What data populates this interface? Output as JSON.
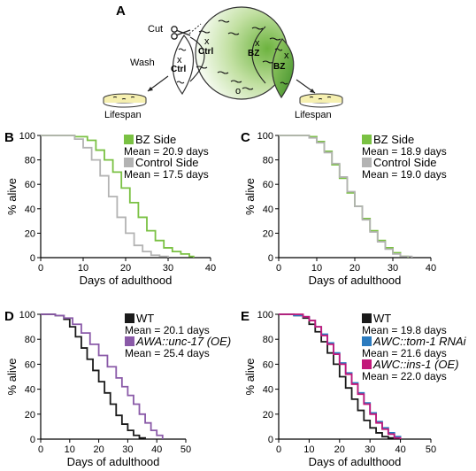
{
  "panel_labels": {
    "a": "A",
    "b": "B",
    "c": "C",
    "d": "D",
    "e": "E"
  },
  "schematic": {
    "cut": "Cut",
    "wash": "Wash",
    "ctrl": "Ctrl",
    "bz": "BZ",
    "x_mark": "x",
    "o_mark": "o",
    "lifespan_left": "Lifespan",
    "lifespan_right": "Lifespan",
    "colors": {
      "green": "#8dc63f",
      "dark_green": "#4f9a2a",
      "plate": "#f6f0b0"
    }
  },
  "chart_data": [
    {
      "type": "line",
      "panel": "B",
      "xlabel": "Days of adulthood",
      "ylabel": "% alive",
      "xlim": [
        0,
        40
      ],
      "ylim": [
        0,
        100
      ],
      "xticks": [
        0,
        10,
        20,
        30,
        40
      ],
      "yticks": [
        0,
        20,
        40,
        60,
        80,
        100
      ],
      "legend_placement": "top-right",
      "series": [
        {
          "name": "BZ Side",
          "mean_text": "Mean = 20.9 days",
          "color": "#7ac143",
          "x": [
            0,
            5,
            8,
            11,
            13,
            15,
            17,
            19,
            21,
            23,
            25,
            27,
            29,
            31,
            33,
            35,
            36
          ],
          "y": [
            100,
            100,
            99,
            96,
            88,
            80,
            70,
            57,
            45,
            33,
            22,
            14,
            8,
            5,
            3,
            1,
            0
          ]
        },
        {
          "name": "Control Side",
          "mean_text": "Mean = 17.5 days",
          "color": "#b3b3b3",
          "x": [
            0,
            5,
            8,
            10,
            12,
            14,
            16,
            18,
            20,
            22,
            24,
            26,
            28,
            30
          ],
          "y": [
            100,
            100,
            97,
            90,
            80,
            67,
            50,
            33,
            20,
            10,
            5,
            2,
            1,
            0
          ]
        }
      ]
    },
    {
      "type": "line",
      "panel": "C",
      "xlabel": "Days of adulthood",
      "ylabel": "% alive",
      "xlim": [
        0,
        40
      ],
      "ylim": [
        0,
        100
      ],
      "xticks": [
        0,
        10,
        20,
        30,
        40
      ],
      "yticks": [
        0,
        20,
        40,
        60,
        80,
        100
      ],
      "legend_placement": "top-right",
      "series": [
        {
          "name": "BZ Side",
          "mean_text": "Mean = 18.9 days",
          "color": "#7ac143",
          "x": [
            0,
            5,
            8,
            10,
            12,
            14,
            16,
            18,
            20,
            22,
            24,
            26,
            28,
            30,
            32,
            34
          ],
          "y": [
            100,
            100,
            99,
            95,
            87,
            76,
            65,
            53,
            42,
            32,
            22,
            14,
            8,
            4,
            1,
            0
          ]
        },
        {
          "name": "Control Side",
          "mean_text": "Mean = 19.0 days",
          "color": "#b3b3b3",
          "x": [
            0,
            5,
            8,
            10,
            12,
            14,
            16,
            18,
            20,
            22,
            24,
            26,
            28,
            30,
            32,
            35
          ],
          "y": [
            100,
            100,
            98,
            94,
            86,
            77,
            66,
            54,
            42,
            31,
            21,
            13,
            7,
            3,
            1,
            0
          ]
        }
      ]
    },
    {
      "type": "line",
      "panel": "D",
      "xlabel": "Days of adulthood",
      "ylabel": "% alive",
      "xlim": [
        0,
        50
      ],
      "ylim": [
        0,
        100
      ],
      "xticks": [
        0,
        10,
        20,
        30,
        40,
        50
      ],
      "yticks": [
        0,
        20,
        40,
        60,
        80,
        100
      ],
      "legend_placement": "top-right",
      "series": [
        {
          "name": "WT",
          "mean_text": "Mean = 20.1 days",
          "color": "#1a1a1a",
          "x": [
            0,
            5,
            8,
            10,
            12,
            14,
            16,
            18,
            20,
            22,
            24,
            26,
            28,
            30,
            32,
            34,
            36
          ],
          "y": [
            100,
            99,
            96,
            90,
            82,
            73,
            64,
            55,
            46,
            37,
            28,
            19,
            12,
            7,
            3,
            1,
            0
          ]
        },
        {
          "name": "AWA::unc-17 (OE)",
          "mean_text": "Mean = 25.4 days",
          "color": "#8a5aa8",
          "x": [
            0,
            5,
            8,
            11,
            14,
            17,
            20,
            23,
            26,
            28,
            30,
            32,
            34,
            36,
            38,
            40,
            42
          ],
          "y": [
            100,
            99,
            97,
            92,
            85,
            76,
            67,
            58,
            49,
            42,
            35,
            28,
            20,
            13,
            7,
            3,
            0
          ]
        }
      ]
    },
    {
      "type": "line",
      "panel": "E",
      "xlabel": "Days of adulthood",
      "ylabel": "% alive",
      "xlim": [
        0,
        50
      ],
      "ylim": [
        0,
        100
      ],
      "xticks": [
        0,
        10,
        20,
        30,
        40,
        50
      ],
      "yticks": [
        0,
        20,
        40,
        60,
        80,
        100
      ],
      "legend_placement": "top-right",
      "series": [
        {
          "name": "WT",
          "mean_text": "Mean = 19.8 days",
          "color": "#1a1a1a",
          "x": [
            0,
            5,
            8,
            10,
            12,
            14,
            16,
            18,
            20,
            22,
            24,
            26,
            28,
            30,
            32,
            34,
            36,
            38
          ],
          "y": [
            100,
            99,
            97,
            92,
            86,
            78,
            69,
            60,
            50,
            41,
            32,
            23,
            15,
            9,
            5,
            2,
            1,
            0
          ]
        },
        {
          "name": "AWC::tom-1 RNAi",
          "mean_text": "Mean = 21.6 days",
          "color": "#2b7bbf",
          "x": [
            0,
            5,
            8,
            10,
            12,
            14,
            16,
            18,
            20,
            22,
            24,
            26,
            28,
            30,
            32,
            34,
            36,
            38,
            40
          ],
          "y": [
            100,
            99,
            98,
            95,
            90,
            84,
            77,
            69,
            61,
            53,
            45,
            37,
            29,
            21,
            14,
            9,
            5,
            2,
            0
          ]
        },
        {
          "name": "AWC::ins-1 (OE)",
          "mean_text": "Mean = 22.0 days",
          "color": "#c2187a",
          "x": [
            0,
            5,
            8,
            10,
            12,
            14,
            16,
            18,
            20,
            22,
            24,
            26,
            28,
            30,
            32,
            34,
            36,
            38,
            40
          ],
          "y": [
            100,
            100,
            98,
            95,
            90,
            83,
            76,
            68,
            60,
            52,
            44,
            36,
            28,
            20,
            13,
            8,
            4,
            1,
            0
          ]
        }
      ]
    }
  ]
}
